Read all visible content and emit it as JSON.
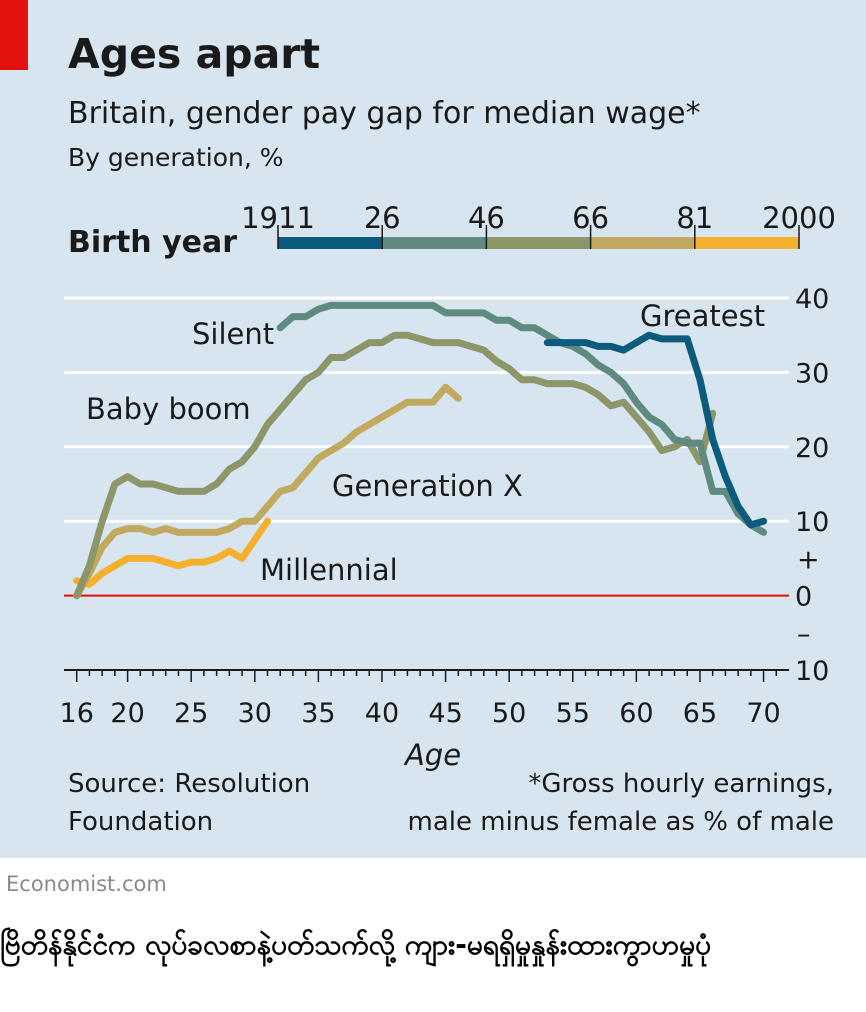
{
  "credit": "Economist.com",
  "caption": "ဗြိတိန်နိုင်ငံက လုပ်ခလစာနဲ့ပတ်သက်လို့ ကျား-မရရှိမှုနှုန်းထားကွာဟမှုပုံ",
  "chart_data": {
    "type": "line",
    "title": "Ages apart",
    "subtitle": "Britain, gender pay gap for median wage*",
    "unit_label": "By generation, %",
    "xlabel": "Age",
    "source": [
      "Source: Resolution",
      "Foundation"
    ],
    "footnote": [
      "*Gross hourly earnings,",
      "male minus female as % of male"
    ],
    "xlim": [
      15,
      72
    ],
    "ylim": [
      -10,
      40
    ],
    "x_ticks": [
      16,
      20,
      25,
      30,
      35,
      40,
      45,
      50,
      55,
      60,
      65,
      70
    ],
    "y_ticks": [
      {
        "value": 40,
        "label": "40"
      },
      {
        "value": 30,
        "label": "30"
      },
      {
        "value": 20,
        "label": "20"
      },
      {
        "value": 10,
        "label": "10"
      },
      {
        "value": 0,
        "label": "0"
      },
      {
        "value": -10,
        "label": "10"
      }
    ],
    "y_signs": {
      "plus": "+",
      "minus": "–"
    },
    "zero_line_color": "#e3120b",
    "legend": {
      "title": "Birth year",
      "ticks": [
        "1911",
        "26",
        "46",
        "66",
        "81",
        "2000"
      ],
      "colors": [
        "#0d5b7c",
        "#5f8a80",
        "#8c9669",
        "#c2a960",
        "#f5b02e"
      ]
    },
    "series": [
      {
        "name": "Greatest",
        "color": "#0d5b7c",
        "x": [
          53,
          54,
          55,
          56,
          57,
          58,
          59,
          60,
          61,
          62,
          63,
          64,
          65,
          66,
          67,
          68,
          69,
          70
        ],
        "y": [
          34,
          34,
          34,
          34,
          33.5,
          33.5,
          33,
          34,
          35,
          34.5,
          34.5,
          34.5,
          29,
          21,
          16,
          12,
          9.5,
          10
        ]
      },
      {
        "name": "Silent",
        "color": "#5f8a80",
        "x": [
          32,
          33,
          34,
          35,
          36,
          37,
          38,
          39,
          40,
          41,
          42,
          43,
          44,
          45,
          46,
          47,
          48,
          49,
          50,
          51,
          52,
          53,
          54,
          55,
          56,
          57,
          58,
          59,
          60,
          61,
          62,
          63,
          64,
          65,
          66,
          67,
          68,
          69,
          70
        ],
        "y": [
          36,
          37.5,
          37.5,
          38.5,
          39,
          39,
          39,
          39,
          39,
          39,
          39,
          39,
          39,
          38,
          38,
          38,
          38,
          37,
          37,
          36,
          36,
          35,
          34,
          33.5,
          32.5,
          31,
          30,
          28.5,
          26,
          24,
          23,
          21,
          20.5,
          20.5,
          14,
          14,
          11,
          9.5,
          8.5
        ]
      },
      {
        "name": "Baby boom",
        "color": "#8c9669",
        "x": [
          16,
          17,
          18,
          19,
          20,
          21,
          22,
          23,
          24,
          25,
          26,
          27,
          28,
          29,
          30,
          31,
          32,
          33,
          34,
          35,
          36,
          37,
          38,
          39,
          40,
          41,
          42,
          43,
          44,
          45,
          46,
          47,
          48,
          49,
          50,
          51,
          52,
          53,
          54,
          55,
          56,
          57,
          58,
          59,
          60,
          61,
          62,
          63,
          64,
          65,
          66
        ],
        "y": [
          0,
          4,
          10,
          15,
          16,
          15,
          15,
          14.5,
          14,
          14,
          14,
          15,
          17,
          18,
          20,
          23,
          25,
          27,
          29,
          30,
          32,
          32,
          33,
          34,
          34,
          35,
          35,
          34.5,
          34,
          34,
          34,
          33.5,
          33,
          31.5,
          30.5,
          29,
          29,
          28.5,
          28.5,
          28.5,
          28,
          27,
          25.5,
          26,
          24,
          22,
          19.5,
          20,
          21,
          18,
          24.5
        ]
      },
      {
        "name": "Generation X",
        "color": "#c2a960",
        "x": [
          16,
          17,
          18,
          19,
          20,
          21,
          22,
          23,
          24,
          25,
          26,
          27,
          28,
          29,
          30,
          31,
          32,
          33,
          34,
          35,
          36,
          37,
          38,
          39,
          40,
          41,
          42,
          43,
          44,
          45,
          46
        ],
        "y": [
          0,
          3,
          6.5,
          8.5,
          9,
          9,
          8.5,
          9,
          8.5,
          8.5,
          8.5,
          8.5,
          9,
          10,
          10,
          12,
          14,
          14.5,
          16.5,
          18.5,
          19.5,
          20.5,
          22,
          23,
          24,
          25,
          26,
          26,
          26,
          28,
          26.5
        ]
      },
      {
        "name": "Millennial",
        "color": "#f5b02e",
        "x": [
          16,
          17,
          18,
          19,
          20,
          21,
          22,
          23,
          24,
          25,
          26,
          27,
          28,
          29,
          30,
          31
        ],
        "y": [
          2,
          1.5,
          3,
          4,
          5,
          5,
          5,
          4.5,
          4,
          4.5,
          4.5,
          5,
          6,
          5,
          7.5,
          10
        ]
      }
    ]
  }
}
